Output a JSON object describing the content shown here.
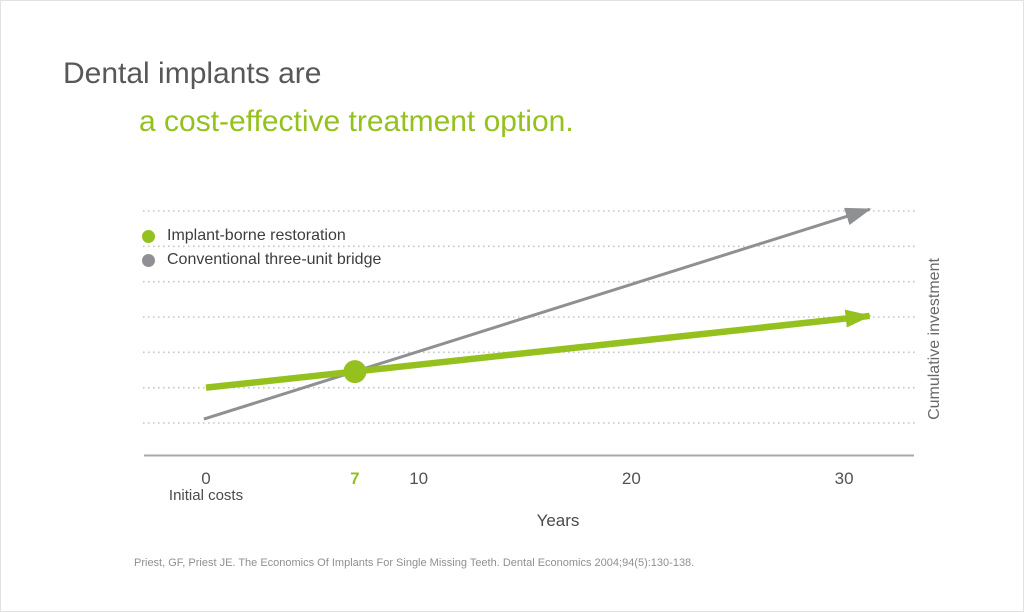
{
  "header": {
    "title_line1": "Dental implants are",
    "title_line2": "a cost-effective treatment option."
  },
  "footer": {
    "citation": "Priest, GF, Priest JE. The Economics Of Implants For Single Missing Teeth. Dental Economics 2004;94(5):130-138."
  },
  "colors": {
    "accent_green": "#95c11f",
    "line_gray": "#8f9093",
    "title_gray": "#58585a",
    "gridline_gray": "#c6c6c6",
    "axis_gray": "#a7a8aa"
  },
  "chart_data": {
    "type": "line",
    "title": "Dental implants are a cost-effective treatment option.",
    "xlabel": "Years",
    "ylabel": "Cumulative investment",
    "x_range_years": [
      0,
      30
    ],
    "grid": "dotted-horizontal",
    "legend_position": "top-left-inside",
    "x_ticks": [
      {
        "label": "0",
        "year": 0,
        "emphasis": false,
        "sublabel": "Initial costs"
      },
      {
        "label": "7",
        "year": 7,
        "emphasis": true
      },
      {
        "label": "10",
        "year": 10,
        "emphasis": false
      },
      {
        "label": "20",
        "year": 20,
        "emphasis": false
      },
      {
        "label": "30",
        "year": 30,
        "emphasis": false
      }
    ],
    "y_gridline_units": [
      0,
      1,
      2,
      3,
      4,
      5,
      6
    ],
    "series": [
      {
        "name": "Implant-borne restoration",
        "color": "#95c11f",
        "stroke_width": 6.5,
        "arrow": true,
        "points_year_unit": [
          [
            0,
            1.0
          ],
          [
            31.2,
            3.03
          ]
        ],
        "marker_point_year_unit": [
          7,
          1.455
        ],
        "marker_meaning": "break-even at year 7"
      },
      {
        "name": "Conventional three-unit bridge",
        "color": "#8f9093",
        "stroke_width": 3,
        "arrow": true,
        "points_year_unit": [
          [
            -0.1,
            0.11
          ],
          [
            31.2,
            6.05
          ]
        ]
      }
    ]
  }
}
